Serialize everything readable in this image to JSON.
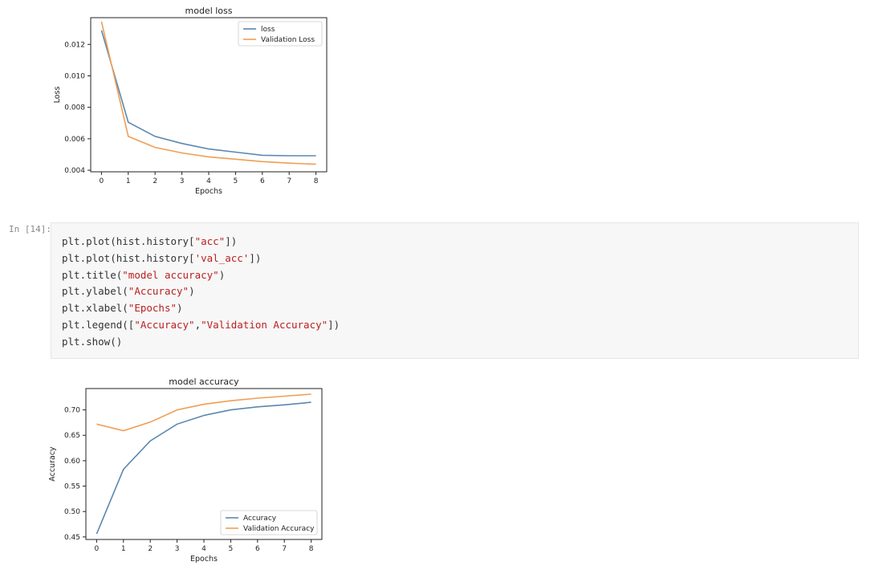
{
  "notebook": {
    "cell_prompt": "In [14]:",
    "code_lines": [
      [
        "plt.plot(hist.history[",
        "\"acc\"",
        "])"
      ],
      [
        "plt.plot(hist.history[",
        "'val_acc'",
        "])"
      ],
      [
        "plt.title(",
        "\"model accuracy\"",
        ")"
      ],
      [
        "plt.ylabel(",
        "\"Accuracy\"",
        ")"
      ],
      [
        "plt.xlabel(",
        "\"Epochs\"",
        ")"
      ],
      [
        "plt.legend([",
        "\"Accuracy\"",
        ",",
        "\"Validation Accuracy\"",
        "])"
      ],
      [
        "plt.show()"
      ]
    ]
  },
  "colors": {
    "series_1": "#5b87b0",
    "series_2": "#ef9e54"
  },
  "chart_data": [
    {
      "type": "line",
      "title": "model loss",
      "xlabel": "Epochs",
      "ylabel": "Loss",
      "x": [
        0,
        1,
        2,
        3,
        4,
        5,
        6,
        7,
        8
      ],
      "xlim": [
        -0.4,
        8.4
      ],
      "ylim": [
        0.0039,
        0.0137
      ],
      "xticks": [
        0,
        1,
        2,
        3,
        4,
        5,
        6,
        7,
        8
      ],
      "yticks": [
        0.004,
        0.006,
        0.008,
        0.01,
        0.012
      ],
      "ytick_labels": [
        "0.004",
        "0.006",
        "0.008",
        "0.010",
        "0.012"
      ],
      "legend_position": "upper right",
      "grid": false,
      "series": [
        {
          "name": "loss",
          "values": [
            0.0129,
            0.00705,
            0.00615,
            0.0057,
            0.00535,
            0.00515,
            0.00495,
            0.00492,
            0.00492
          ]
        },
        {
          "name": "Validation Loss",
          "values": [
            0.01345,
            0.00615,
            0.00545,
            0.0051,
            0.00485,
            0.0047,
            0.00455,
            0.00445,
            0.00438
          ]
        }
      ]
    },
    {
      "type": "line",
      "title": "model accuracy",
      "xlabel": "Epochs",
      "ylabel": "Accuracy",
      "x": [
        0,
        1,
        2,
        3,
        4,
        5,
        6,
        7,
        8
      ],
      "xlim": [
        -0.4,
        8.4
      ],
      "ylim": [
        0.445,
        0.742
      ],
      "xticks": [
        0,
        1,
        2,
        3,
        4,
        5,
        6,
        7,
        8
      ],
      "yticks": [
        0.45,
        0.5,
        0.55,
        0.6,
        0.65,
        0.7
      ],
      "ytick_labels": [
        "0.45",
        "0.50",
        "0.55",
        "0.60",
        "0.65",
        "0.70"
      ],
      "legend_position": "lower right",
      "grid": false,
      "series": [
        {
          "name": "Accuracy",
          "values": [
            0.456,
            0.583,
            0.639,
            0.672,
            0.689,
            0.7,
            0.706,
            0.71,
            0.715
          ]
        },
        {
          "name": "Validation Accuracy",
          "values": [
            0.672,
            0.659,
            0.676,
            0.7,
            0.711,
            0.718,
            0.723,
            0.727,
            0.731
          ]
        }
      ]
    }
  ]
}
